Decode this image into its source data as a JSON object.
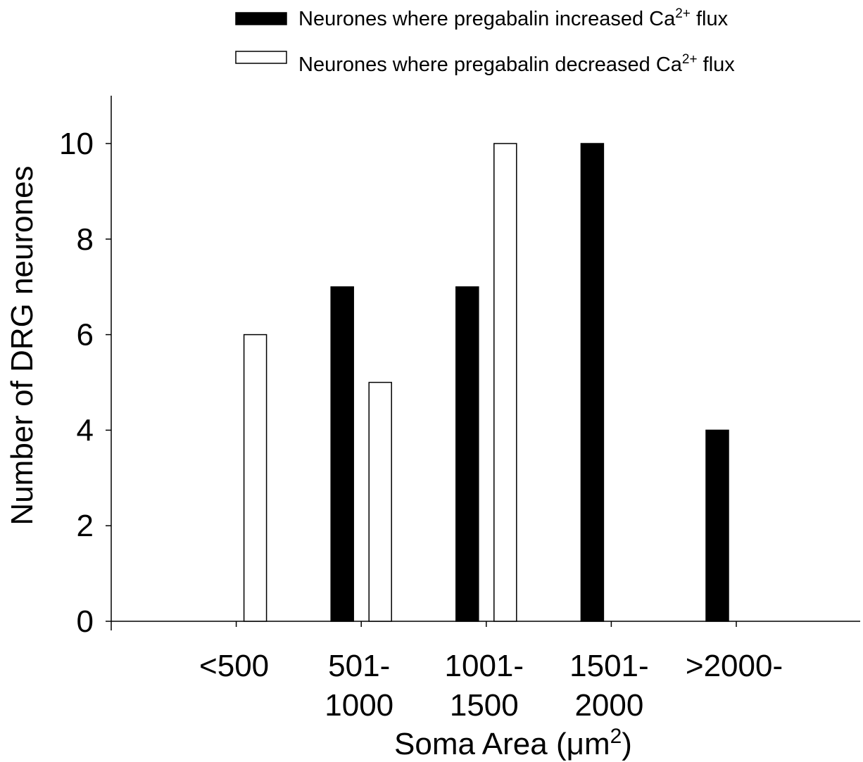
{
  "chart_data": {
    "type": "bar",
    "title": "",
    "xlabel": "Soma Area (μm",
    "xlabel_sup": "2",
    "xlabel_suffix": ")",
    "ylabel": "Number of DRG neurones",
    "ylim": [
      0,
      11
    ],
    "yticks": [
      "0",
      "2",
      "4",
      "6",
      "8",
      "10"
    ],
    "categories": [
      {
        "line1": "<500",
        "line2": ""
      },
      {
        "line1": "501-",
        "line2": "1000"
      },
      {
        "line1": "1001-",
        "line2": "1500"
      },
      {
        "line1": "1501-",
        "line2": "2000"
      },
      {
        "line1": ">2000-",
        "line2": ""
      }
    ],
    "series": [
      {
        "name": "Neurones where pregabalin increased Ca",
        "name_sup": "2+",
        "name_suffix": " flux",
        "fill": "#000000",
        "values": [
          0,
          7,
          7,
          10,
          4
        ]
      },
      {
        "name": "Neurones where pregabalin decreased Ca",
        "name_sup": "2+",
        "name_suffix": " flux",
        "fill": "#ffffff",
        "values": [
          6,
          5,
          10,
          0,
          0
        ]
      }
    ],
    "grid": false,
    "legend_position": "top-right",
    "colors": {
      "axis": "#000000",
      "increased": "#000000",
      "decreased": "#ffffff"
    }
  }
}
